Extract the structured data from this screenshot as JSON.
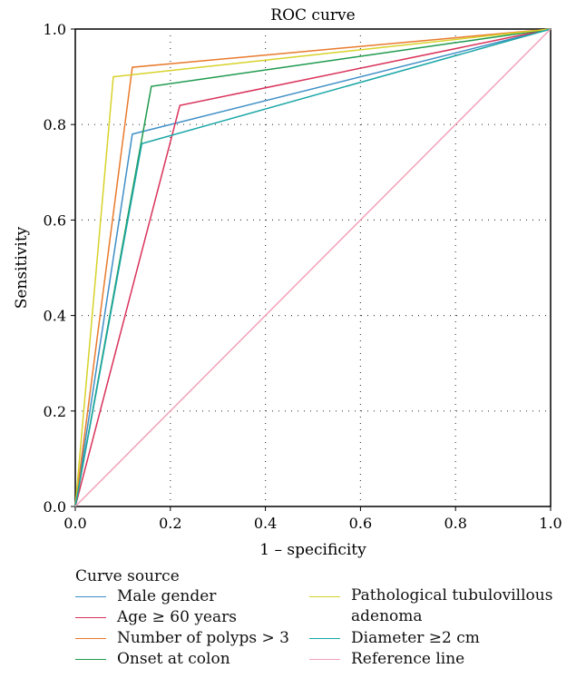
{
  "chart_data": {
    "type": "line",
    "title": "ROC curve",
    "xlabel": "1 – specificity",
    "ylabel": "Sensitivity",
    "xlim": [
      0,
      1
    ],
    "ylim": [
      0,
      1
    ],
    "x_ticks": [
      "0.0",
      "0.2",
      "0.4",
      "0.6",
      "0.8",
      "1.0"
    ],
    "y_ticks": [
      "0.0",
      "0.2",
      "0.4",
      "0.6",
      "0.8",
      "1.0"
    ],
    "grid": "dotted",
    "legend_title": "Curve source",
    "legend_position": "bottom",
    "series": [
      {
        "name": "Male gender",
        "color": "#3f8fc6",
        "points": [
          [
            0,
            0
          ],
          [
            0.12,
            0.78
          ],
          [
            1,
            1
          ]
        ]
      },
      {
        "name": "Age ≥ 60 years",
        "color": "#d9325a",
        "points": [
          [
            0,
            0
          ],
          [
            0.22,
            0.84
          ],
          [
            1,
            1
          ]
        ]
      },
      {
        "name": "Number of polyps > 3",
        "color": "#e87a2c",
        "points": [
          [
            0,
            0
          ],
          [
            0.12,
            0.92
          ],
          [
            1,
            1
          ]
        ]
      },
      {
        "name": "Onset at colon",
        "color": "#1e9a4e",
        "points": [
          [
            0,
            0
          ],
          [
            0.16,
            0.88
          ],
          [
            1,
            1
          ]
        ]
      },
      {
        "name": "Pathological tubulovillous adenoma",
        "color": "#d7d22a",
        "points": [
          [
            0,
            0
          ],
          [
            0.08,
            0.9
          ],
          [
            1,
            1
          ]
        ]
      },
      {
        "name": "Diameter ≥2 cm",
        "color": "#1aa6a6",
        "points": [
          [
            0,
            0
          ],
          [
            0.14,
            0.76
          ],
          [
            1,
            1
          ]
        ]
      },
      {
        "name": "Reference line",
        "color": "#f2a2b8",
        "points": [
          [
            0,
            0
          ],
          [
            1,
            1
          ]
        ]
      }
    ]
  }
}
